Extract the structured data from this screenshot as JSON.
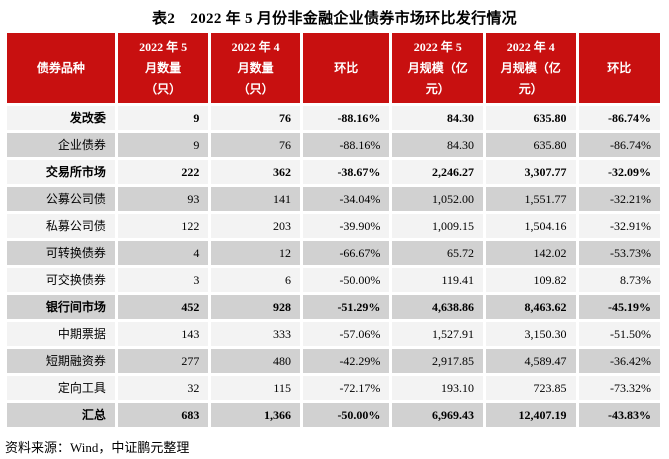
{
  "page": {
    "title": "表2　2022 年 5 月份非金融企业债券市场环比发行情况",
    "source_note": "资料来源：Wind，中证鹏元整理"
  },
  "colors": {
    "header_bg": "#C81010",
    "header_text": "#FFFFFF",
    "row_light": "#F3F3F3",
    "row_shaded": "#D1D1D1",
    "body_text": "#000000"
  },
  "table": {
    "columns": [
      {
        "label": "债券品种"
      },
      {
        "label": "2022 年 5\n月数量\n（只）"
      },
      {
        "label": "2022 年 4\n月数量\n（只）"
      },
      {
        "label": "环比"
      },
      {
        "label": "2022 年 5\n月规模（亿\n元）"
      },
      {
        "label": "2022 年 4\n月规模（亿\n元）"
      },
      {
        "label": "环比"
      }
    ],
    "rows": [
      {
        "label": "发改委",
        "style": "section",
        "values": [
          "9",
          "76",
          "-88.16%",
          "84.30",
          "635.80",
          "-86.74%"
        ]
      },
      {
        "label": "企业债券",
        "style": "sub",
        "values": [
          "9",
          "76",
          "-88.16%",
          "84.30",
          "635.80",
          "-86.74%"
        ]
      },
      {
        "label": "交易所市场",
        "style": "section",
        "values": [
          "222",
          "362",
          "-38.67%",
          "2,246.27",
          "3,307.77",
          "-32.09%"
        ]
      },
      {
        "label": "公募公司债",
        "style": "sub",
        "values": [
          "93",
          "141",
          "-34.04%",
          "1,052.00",
          "1,551.77",
          "-32.21%"
        ]
      },
      {
        "label": "私募公司债",
        "style": "sub",
        "values": [
          "122",
          "203",
          "-39.90%",
          "1,009.15",
          "1,504.16",
          "-32.91%"
        ]
      },
      {
        "label": "可转换债券",
        "style": "sub",
        "values": [
          "4",
          "12",
          "-66.67%",
          "65.72",
          "142.02",
          "-53.73%"
        ]
      },
      {
        "label": "可交换债券",
        "style": "sub",
        "values": [
          "3",
          "6",
          "-50.00%",
          "119.41",
          "109.82",
          "8.73%"
        ]
      },
      {
        "label": "银行间市场",
        "style": "section",
        "values": [
          "452",
          "928",
          "-51.29%",
          "4,638.86",
          "8,463.62",
          "-45.19%"
        ]
      },
      {
        "label": "中期票据",
        "style": "sub",
        "values": [
          "143",
          "333",
          "-57.06%",
          "1,527.91",
          "3,150.30",
          "-51.50%"
        ]
      },
      {
        "label": "短期融资券",
        "style": "sub",
        "values": [
          "277",
          "480",
          "-42.29%",
          "2,917.85",
          "4,589.47",
          "-36.42%"
        ]
      },
      {
        "label": "定向工具",
        "style": "sub",
        "values": [
          "32",
          "115",
          "-72.17%",
          "193.10",
          "723.85",
          "-73.32%"
        ]
      },
      {
        "label": "汇总",
        "style": "total",
        "values": [
          "683",
          "1,366",
          "-50.00%",
          "6,969.43",
          "12,407.19",
          "-43.83%"
        ]
      }
    ]
  }
}
